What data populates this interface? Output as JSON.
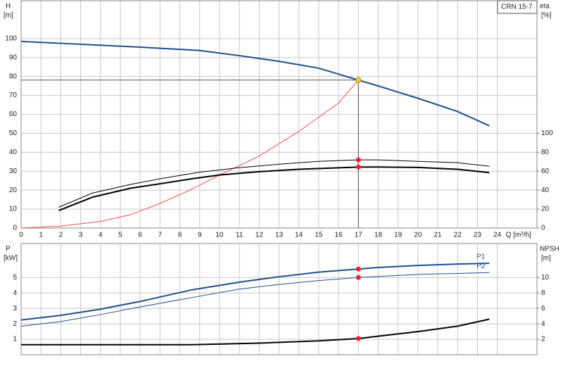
{
  "chart_data": [
    {
      "type": "line",
      "legend_box": "CRN 15-7",
      "y_label": "H",
      "y_unit": "[m]",
      "y2_label": "eta",
      "y2_unit": "[%]",
      "x_label": "Q [m³/h]",
      "xlim": [
        0,
        26
      ],
      "xticks": [
        0,
        1,
        2,
        3,
        4,
        5,
        6,
        7,
        8,
        9,
        10,
        11,
        12,
        13,
        14,
        15,
        16,
        17,
        18,
        19,
        20,
        21,
        22,
        23,
        24
      ],
      "ylim": [
        0,
        120
      ],
      "yticks": [
        0,
        10,
        20,
        30,
        40,
        50,
        60,
        70,
        80,
        90,
        100
      ],
      "y2lim": [
        0,
        240
      ],
      "y2ticks": [
        0,
        20,
        40,
        60,
        80,
        100
      ],
      "grid": true,
      "xtick_labels": true,
      "series": [
        {
          "color": "#1f4e8c",
          "line_width": 2,
          "x": [
            0,
            2,
            4,
            6,
            8,
            9,
            11,
            13,
            15,
            17,
            18,
            20,
            22,
            23.6
          ],
          "values": [
            98.5,
            97.5,
            96.5,
            95.5,
            94.3,
            93.7,
            91,
            88,
            84.4,
            78.1,
            75,
            68.5,
            61.5,
            54
          ]
        },
        {
          "color": "#ff4a4a",
          "line_width": 1,
          "x": [
            0,
            2,
            4,
            5.5,
            7,
            8.5,
            10,
            12,
            14,
            16,
            17
          ],
          "values": [
            0,
            1,
            3.5,
            7,
            13,
            20,
            28,
            38,
            51,
            66,
            78.1
          ]
        },
        {
          "color": "#000000",
          "line_width": 1,
          "axis": "y2",
          "x": [
            1.9,
            3.6,
            5.5,
            7,
            9,
            11,
            13,
            15,
            17,
            18,
            20,
            22,
            23.6
          ],
          "values": [
            22,
            37,
            46,
            52,
            59,
            63.7,
            67.4,
            70.4,
            72,
            72,
            70.4,
            69,
            65.2
          ]
        },
        {
          "color": "#000000",
          "line_width": 2,
          "axis": "y2",
          "x": [
            1.9,
            3.6,
            5.5,
            7,
            8.6,
            10,
            12,
            14,
            17,
            18,
            20,
            22,
            23.6
          ],
          "values": [
            18.5,
            32.6,
            42,
            46.7,
            52,
            56,
            59.5,
            62,
            64.4,
            64.5,
            64,
            62,
            58.5
          ]
        }
      ],
      "operating_point": {
        "x": 17,
        "y": 78.1
      },
      "markers": [
        {
          "x": 17,
          "y": 78.1,
          "color": "#ffcc33"
        },
        {
          "x": 17,
          "y": 72,
          "axis": "y2",
          "color": "#ff2020"
        },
        {
          "x": 17,
          "y": 64.4,
          "axis": "y2",
          "color": "#ff2020"
        }
      ]
    },
    {
      "type": "line",
      "y_label": "P",
      "y_unit": "[kW]",
      "y2_label": "NPSH",
      "y2_unit": "[m]",
      "xlim": [
        0,
        26
      ],
      "xticks": [
        0,
        1,
        2,
        3,
        4,
        5,
        6,
        7,
        8,
        9,
        10,
        11,
        12,
        13,
        14,
        15,
        16,
        17,
        18,
        19,
        20,
        21,
        22,
        23,
        24
      ],
      "ylim": [
        0,
        7.2
      ],
      "yticks": [
        1,
        2,
        3,
        4,
        5
      ],
      "y2lim": [
        0,
        14.4
      ],
      "y2ticks": [
        2,
        4,
        6,
        8,
        10
      ],
      "grid": true,
      "xtick_labels": false,
      "series": [
        {
          "name": "P1",
          "color": "#1f4e8c",
          "line_width": 2,
          "x": [
            0,
            2,
            4,
            6,
            8.6,
            11,
            13,
            15,
            17,
            18,
            20,
            22,
            23.6
          ],
          "values": [
            2.25,
            2.55,
            2.95,
            3.45,
            4.2,
            4.7,
            5.05,
            5.35,
            5.55,
            5.65,
            5.78,
            5.87,
            5.92
          ]
        },
        {
          "name": "P2",
          "color": "#1f4e8c",
          "line_width": 1,
          "x": [
            0,
            2,
            4,
            6,
            8.6,
            11,
            13,
            15,
            17,
            20,
            23.6
          ],
          "values": [
            1.85,
            2.15,
            2.6,
            3.1,
            3.7,
            4.25,
            4.55,
            4.8,
            5.0,
            5.2,
            5.32
          ]
        },
        {
          "color": "#000000",
          "line_width": 2,
          "axis": "y2",
          "x": [
            0,
            4,
            8.6,
            12,
            15,
            17,
            18,
            20,
            22,
            23.6
          ],
          "values": [
            1.3,
            1.3,
            1.3,
            1.5,
            1.8,
            2.1,
            2.4,
            3.0,
            3.7,
            4.6
          ]
        }
      ],
      "markers": [
        {
          "x": 17,
          "y": 5.55,
          "color": "#ff2020"
        },
        {
          "x": 17,
          "y": 5.0,
          "color": "#ff2020"
        },
        {
          "x": 17,
          "y": 2.1,
          "axis": "y2",
          "color": "#ff2020"
        }
      ]
    }
  ]
}
